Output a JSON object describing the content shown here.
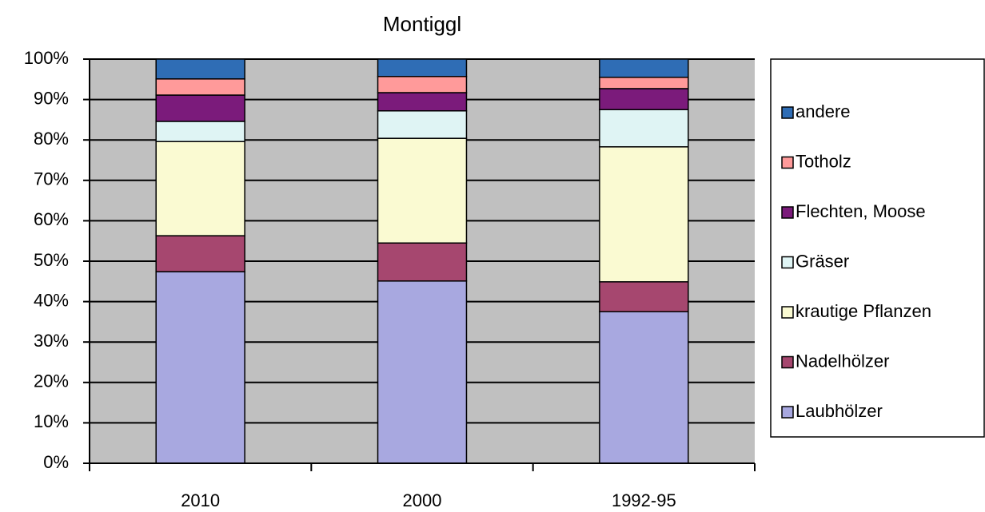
{
  "chart_data": {
    "type": "stacked_bar",
    "title": "Montiggl",
    "categories": [
      "2010",
      "2000",
      "1992-95"
    ],
    "series": [
      {
        "name": "Laubhölzer",
        "color": "#a8a8e0",
        "values": [
          47.4,
          45.1,
          37.5
        ]
      },
      {
        "name": "Nadelhölzer",
        "color": "#a6476f",
        "values": [
          8.9,
          9.4,
          7.4
        ]
      },
      {
        "name": "krautige Pflanzen",
        "color": "#fafad2",
        "values": [
          23.3,
          25.9,
          33.4
        ]
      },
      {
        "name": "Gräser",
        "color": "#dff4f4",
        "values": [
          5.0,
          6.8,
          9.2
        ]
      },
      {
        "name": "Flechten, Moose",
        "color": "#7b1b7b",
        "values": [
          6.5,
          4.5,
          5.2
        ]
      },
      {
        "name": "Totholz",
        "color": "#ff9a9a",
        "values": [
          4.0,
          4.0,
          2.8
        ]
      },
      {
        "name": "andere",
        "color": "#2f6db5",
        "values": [
          4.9,
          4.3,
          4.5
        ]
      }
    ],
    "ylim": [
      0,
      100
    ],
    "yticks": [
      {
        "value": 0,
        "label": "0%"
      },
      {
        "value": 10,
        "label": "10%"
      },
      {
        "value": 20,
        "label": "20%"
      },
      {
        "value": 30,
        "label": "30%"
      },
      {
        "value": 40,
        "label": "40%"
      },
      {
        "value": 50,
        "label": "50%"
      },
      {
        "value": 60,
        "label": "60%"
      },
      {
        "value": 70,
        "label": "70%"
      },
      {
        "value": 80,
        "label": "80%"
      },
      {
        "value": 90,
        "label": "90%"
      },
      {
        "value": 100,
        "label": "100%"
      }
    ],
    "grid": true,
    "legend": "right",
    "plot_background": "#c0c0c0"
  }
}
